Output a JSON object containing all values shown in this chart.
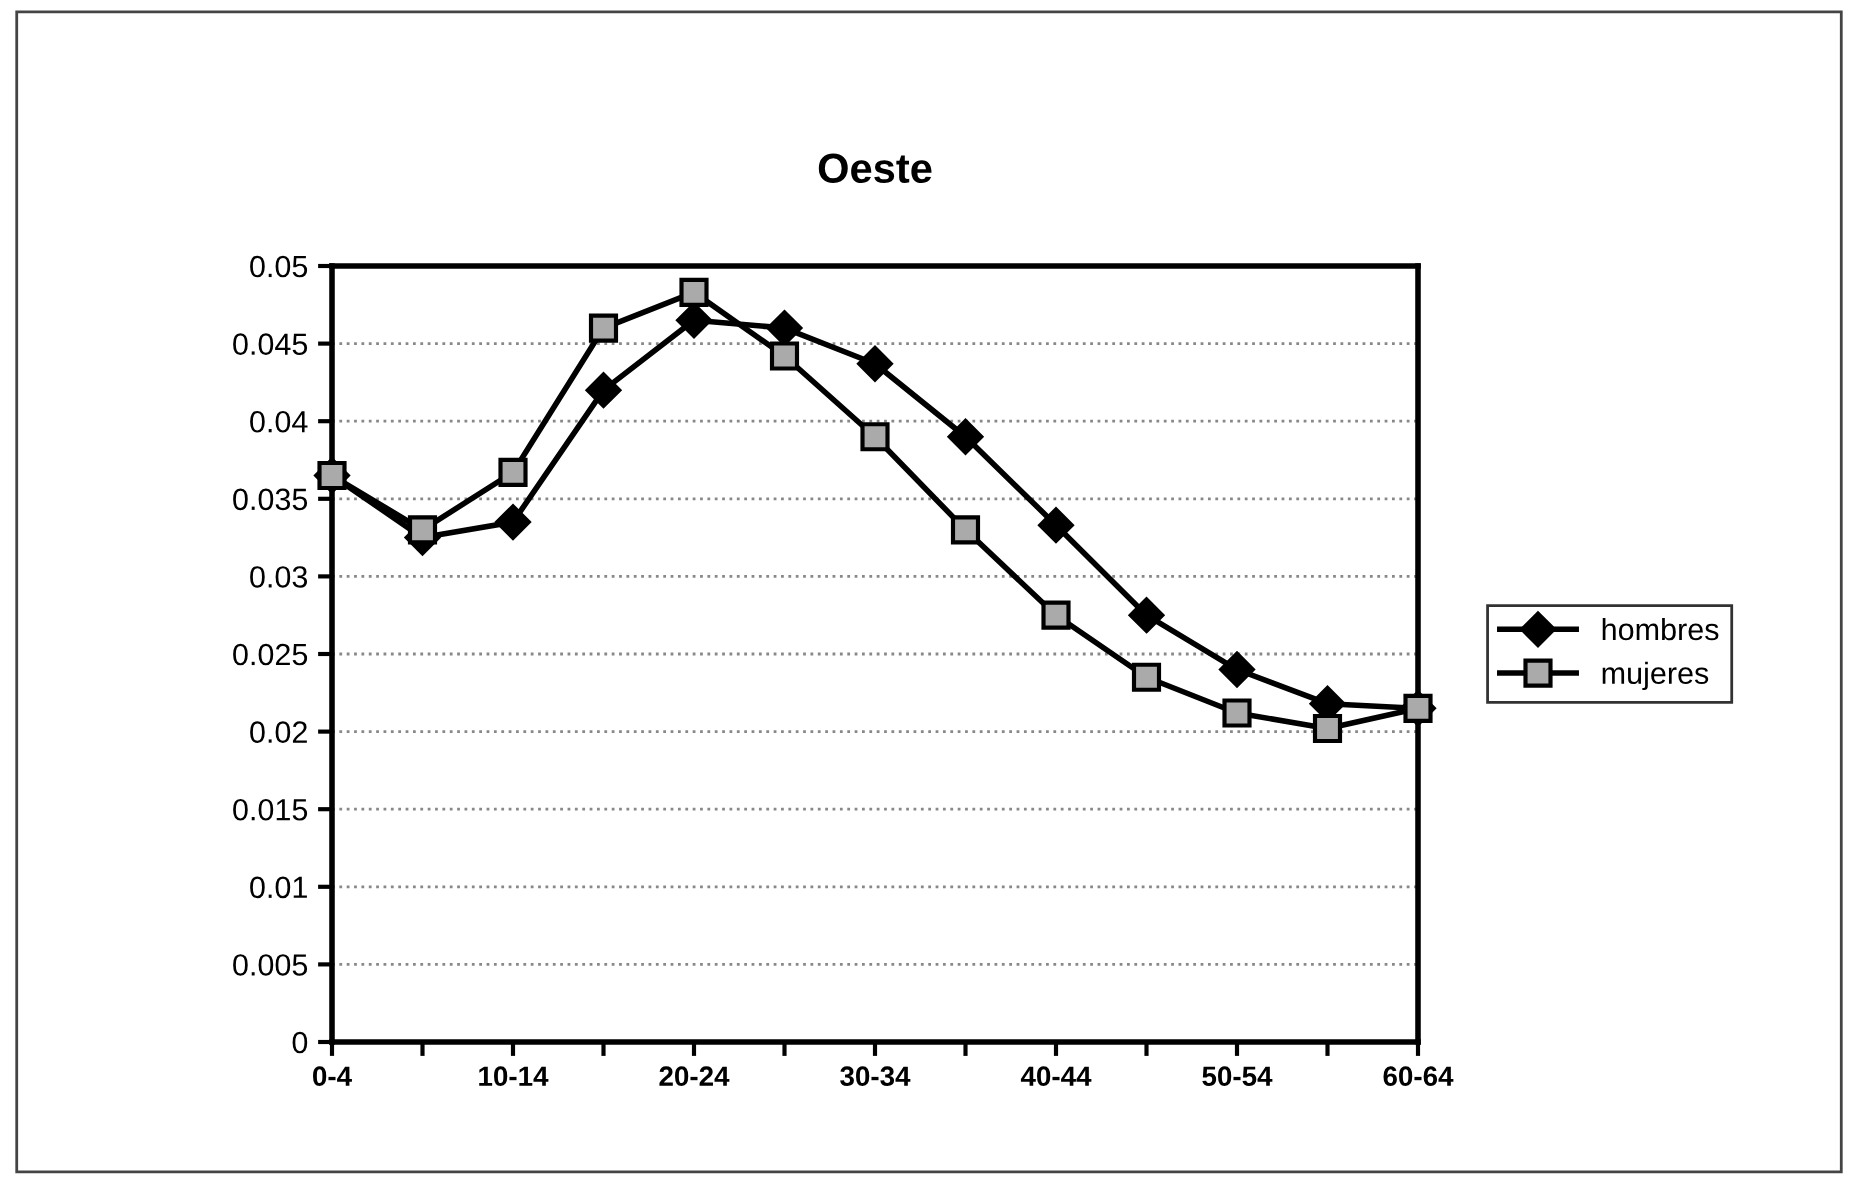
{
  "chart_data": {
    "type": "line",
    "title": "Oeste",
    "categories": [
      "0-4",
      null,
      "10-14",
      null,
      "20-24",
      null,
      "30-34",
      null,
      "40-44",
      null,
      "50-54",
      null,
      "60-64"
    ],
    "series": [
      {
        "name": "hombres",
        "color": "#000000",
        "marker": "diamond",
        "values": [
          0.0365,
          0.0325,
          0.0335,
          0.042,
          0.0465,
          0.046,
          0.0437,
          0.039,
          0.0333,
          0.0275,
          0.024,
          0.0218,
          0.0215
        ]
      },
      {
        "name": "mujeres",
        "color": "#000000",
        "marker": "square",
        "values": [
          0.0365,
          0.033,
          0.0367,
          0.046,
          0.0483,
          0.0442,
          0.039,
          0.033,
          0.0275,
          0.0235,
          0.0212,
          0.0202,
          0.0215
        ]
      }
    ],
    "ylim": [
      0,
      0.05
    ],
    "yticks": [
      0,
      0.005,
      0.01,
      0.015,
      0.02,
      0.025,
      0.03,
      0.035,
      0.04,
      0.045,
      0.05
    ],
    "grid": "y",
    "legend": "right",
    "line_style": "solid"
  }
}
